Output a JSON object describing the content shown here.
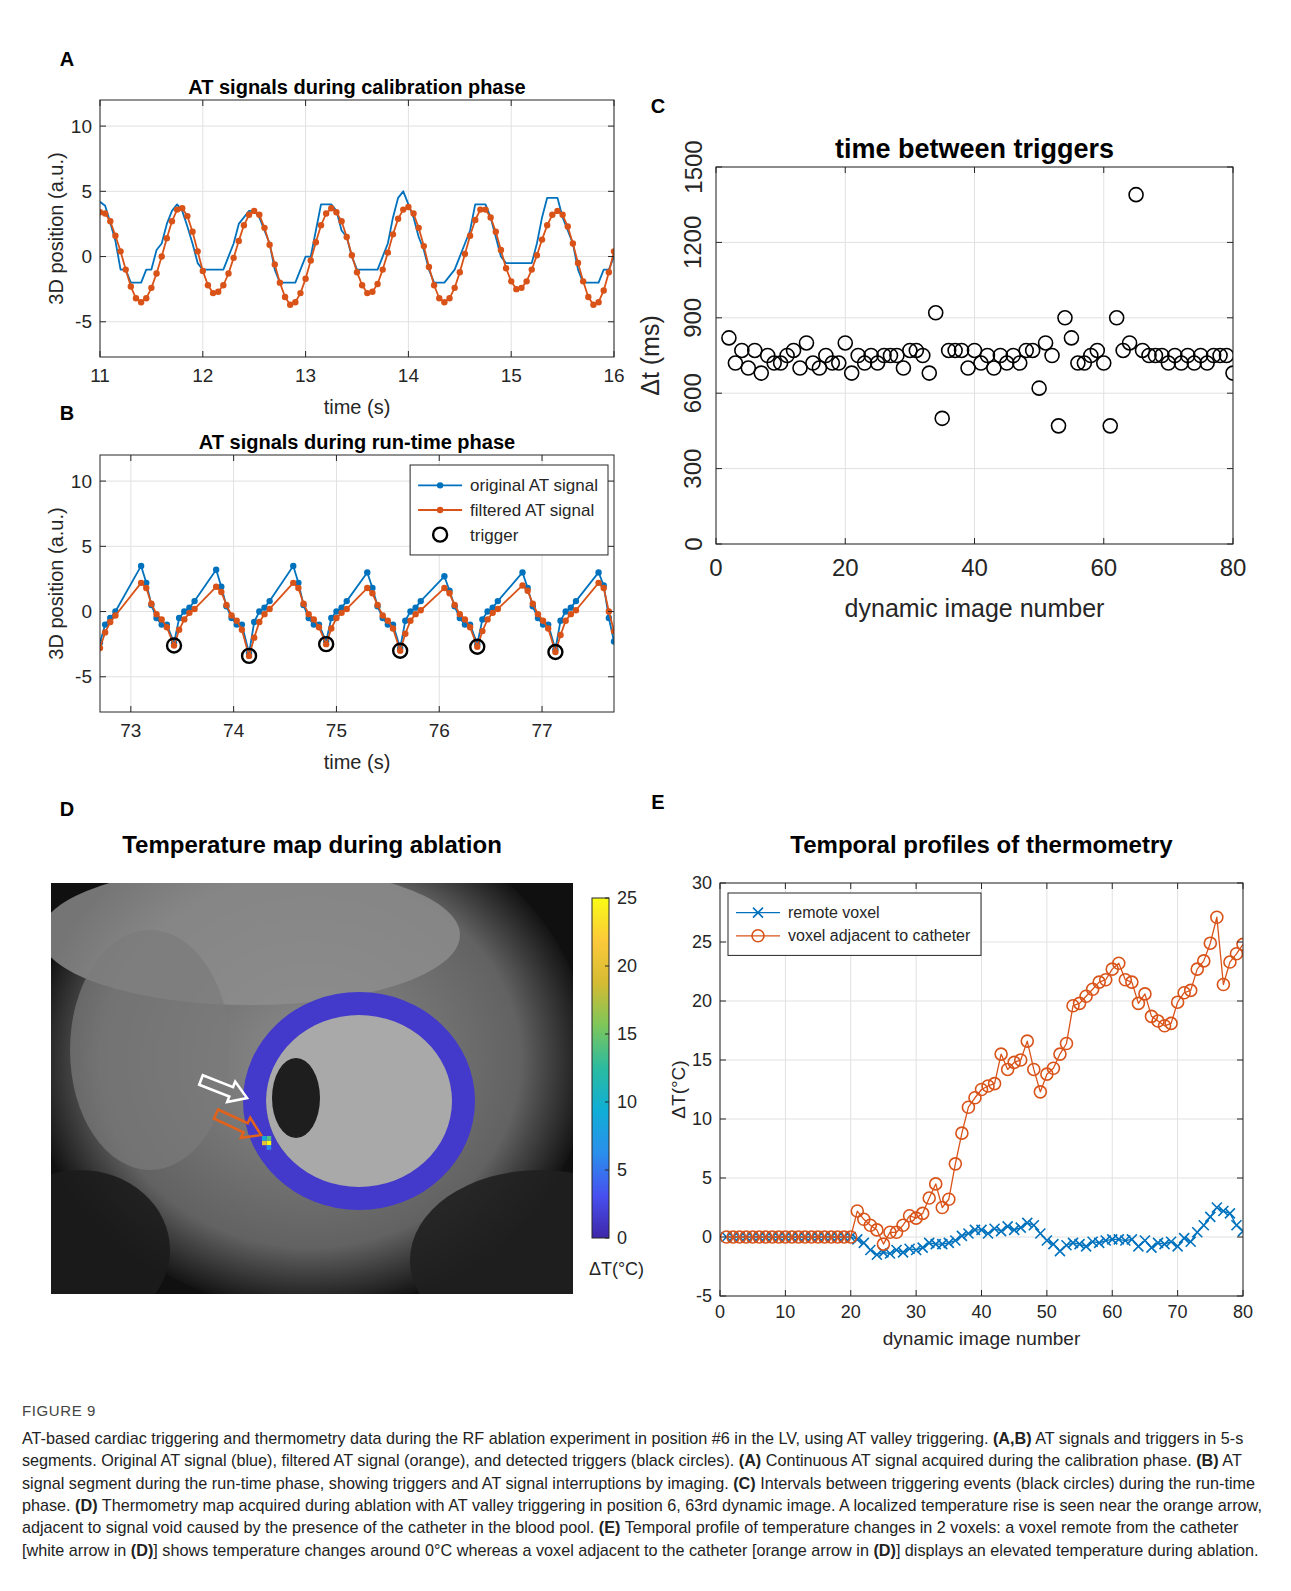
{
  "caption": {
    "label": "FIGURE 9",
    "text": "AT-based cardiac triggering and thermometry data during the RF ablation experiment in position #6 in the LV, using AT valley triggering. (A,B) AT signals and triggers in 5-s segments. Original AT signal (blue), filtered AT signal (orange), and detected triggers (black circles). (A) Continuous AT signal acquired during the calibration phase. (B) AT signal segment during the run-time phase, showing triggers and AT signal interruptions by imaging. (C) Intervals between triggering events (black circles) during the run-time phase. (D) Thermometry map acquired during ablation with AT valley triggering in position 6, 63rd dynamic image. A localized temperature rise is seen near the orange arrow, adjacent to signal void caused by the presence of the catheter in the blood pool. (E) Temporal profile of temperature changes in 2 voxels: a voxel remote from the catheter [white arrow in (D)] shows temperature changes around 0°C whereas a voxel adjacent to the catheter [orange arrow in (D)] displays an elevated temperature during ablation."
  },
  "chart_data": [
    {
      "panel": "A",
      "type": "line",
      "title": "AT signals during calibration phase",
      "x_label": "time (s)",
      "y_label": "3D position (a.u.)",
      "xlim": [
        11,
        16
      ],
      "xticks": [
        11,
        12,
        13,
        14,
        15,
        16
      ],
      "ylim": [
        -7.7,
        12
      ],
      "yticks": [
        -5,
        0,
        5,
        10
      ],
      "grid": true,
      "x": [
        11,
        11.05,
        11.1,
        11.15,
        11.2,
        11.25,
        11.3,
        11.35,
        11.4,
        11.45,
        11.5,
        11.55,
        11.6,
        11.65,
        11.7,
        11.75,
        11.8,
        11.85,
        11.9,
        11.95,
        12,
        12.05,
        12.1,
        12.15,
        12.2,
        12.25,
        12.3,
        12.35,
        12.4,
        12.45,
        12.5,
        12.55,
        12.6,
        12.65,
        12.7,
        12.75,
        12.8,
        12.85,
        12.9,
        12.95,
        13,
        13.05,
        13.1,
        13.15,
        13.2,
        13.25,
        13.3,
        13.35,
        13.4,
        13.45,
        13.5,
        13.55,
        13.6,
        13.65,
        13.7,
        13.75,
        13.8,
        13.85,
        13.9,
        13.95,
        14,
        14.05,
        14.1,
        14.15,
        14.2,
        14.25,
        14.3,
        14.35,
        14.4,
        14.45,
        14.5,
        14.55,
        14.6,
        14.65,
        14.7,
        14.75,
        14.8,
        14.85,
        14.9,
        14.95,
        15,
        15.05,
        15.1,
        15.15,
        15.2,
        15.25,
        15.3,
        15.35,
        15.4,
        15.45,
        15.5,
        15.55,
        15.6,
        15.65,
        15.7,
        15.75,
        15.8,
        15.85,
        15.9,
        15.95,
        16
      ],
      "series": [
        {
          "color": "#0072bd",
          "marker": "none",
          "line_style": "solid",
          "values": [
            4.2,
            3.9,
            2.6,
            1.2,
            -1.0,
            -1.0,
            -2.0,
            -2.0,
            -2.0,
            -1.0,
            -1.0,
            0.5,
            1.0,
            2.5,
            3.5,
            4.0,
            3.5,
            2.3,
            1.0,
            -0.5,
            -1.0,
            -1.0,
            -1.0,
            -1.0,
            -1.0,
            0.0,
            1.0,
            2.5,
            3.0,
            3.5,
            3.5,
            3.0,
            2.0,
            1.0,
            -1.0,
            -2.0,
            -2.0,
            -2.0,
            -2.0,
            -1.0,
            0.0,
            0.0,
            2.0,
            4.0,
            4.0,
            4.0,
            3.5,
            2.0,
            1.5,
            0.0,
            -1.0,
            -1.0,
            -1.0,
            -1.0,
            -1.0,
            0.0,
            1.0,
            3.0,
            4.5,
            5.0,
            4.0,
            3.0,
            1.5,
            0.5,
            -1.0,
            -2.0,
            -2.0,
            -2.0,
            -1.5,
            -1.0,
            0.0,
            1.0,
            2.0,
            4.0,
            4.0,
            4.0,
            3.0,
            1.5,
            0.0,
            -0.5,
            -0.5,
            -0.5,
            -0.5,
            -0.5,
            -0.5,
            1.0,
            3.0,
            4.5,
            4.5,
            4.5,
            3.0,
            2.0,
            1.0,
            -1.0,
            -2.0,
            -2.0,
            -2.0,
            -2.0,
            -1.0,
            -1.0,
            0.0
          ]
        },
        {
          "color": "#d95319",
          "marker": "dot",
          "line_style": "solid",
          "values": [
            3.4,
            3.3,
            2.7,
            1.6,
            0.4,
            -1.0,
            -2.3,
            -3.2,
            -3.5,
            -3.2,
            -2.4,
            -1.3,
            0.0,
            1.4,
            2.7,
            3.6,
            3.7,
            3.1,
            1.9,
            0.4,
            -1.1,
            -2.2,
            -2.8,
            -2.7,
            -2.2,
            -1.3,
            -0.1,
            1.2,
            2.4,
            3.2,
            3.5,
            3.2,
            2.2,
            0.9,
            -0.6,
            -2.0,
            -3.1,
            -3.7,
            -3.5,
            -2.8,
            -1.7,
            -0.3,
            1.1,
            2.4,
            3.3,
            3.7,
            3.4,
            2.7,
            1.5,
            0.1,
            -1.2,
            -2.2,
            -2.8,
            -2.7,
            -2.1,
            -1.0,
            0.3,
            1.7,
            2.9,
            3.6,
            3.8,
            3.3,
            2.2,
            0.8,
            -0.8,
            -2.2,
            -3.2,
            -3.5,
            -3.2,
            -2.4,
            -1.2,
            0.2,
            1.6,
            2.8,
            3.6,
            3.6,
            3.0,
            1.9,
            0.5,
            -0.9,
            -1.9,
            -2.5,
            -2.4,
            -1.9,
            -1.0,
            0.1,
            1.3,
            2.4,
            3.2,
            3.5,
            3.2,
            2.3,
            1.0,
            -0.5,
            -1.9,
            -3.1,
            -3.7,
            -3.5,
            -2.6,
            -1.2,
            0.4
          ]
        }
      ]
    },
    {
      "panel": "B",
      "type": "line",
      "title": "AT signals during run-time phase",
      "x_label": "time (s)",
      "y_label": "3D position (a.u.)",
      "xlim": [
        72.7,
        77.7
      ],
      "xticks": [
        73,
        74,
        75,
        76,
        77
      ],
      "ylim": [
        -7.7,
        12
      ],
      "yticks": [
        -5,
        0,
        5,
        10
      ],
      "grid": true,
      "legend": "upper right",
      "x": [
        72.7,
        72.75,
        72.8,
        72.85,
        73.1,
        73.15,
        73.2,
        73.25,
        73.3,
        73.35,
        73.42,
        73.47,
        73.52,
        73.57,
        73.62,
        73.83,
        73.88,
        73.93,
        73.98,
        74.03,
        74.08,
        74.15,
        74.2,
        74.25,
        74.3,
        74.35,
        74.58,
        74.63,
        74.68,
        74.73,
        74.78,
        74.83,
        74.9,
        74.95,
        75,
        75.05,
        75.1,
        75.3,
        75.35,
        75.4,
        75.45,
        75.5,
        75.55,
        75.62,
        75.67,
        75.72,
        75.77,
        75.82,
        76.05,
        76.1,
        76.15,
        76.2,
        76.25,
        76.3,
        76.37,
        76.42,
        76.47,
        76.52,
        76.57,
        76.81,
        76.86,
        76.91,
        76.96,
        77.01,
        77.06,
        77.13,
        77.18,
        77.23,
        77.28,
        77.33,
        77.55,
        77.6,
        77.65,
        77.7
      ],
      "series": [
        {
          "name": "original AT signal",
          "color": "#0072bd",
          "marker": "dot",
          "line_style": "solid",
          "values": [
            -2.4,
            -1.0,
            -0.5,
            0.0,
            3.5,
            2.2,
            0.5,
            -0.5,
            -1.0,
            -1.0,
            -2.4,
            -0.5,
            0.0,
            0.3,
            0.8,
            3.2,
            1.9,
            0.4,
            -0.5,
            -1.0,
            -1.0,
            -3.2,
            -0.8,
            0.0,
            0.3,
            0.8,
            3.5,
            2.2,
            0.5,
            -0.5,
            -1.0,
            -1.0,
            -2.3,
            -0.5,
            0.0,
            0.3,
            0.8,
            3.0,
            1.8,
            0.4,
            -0.5,
            -1.0,
            -1.0,
            -2.8,
            -0.7,
            0.0,
            0.3,
            0.8,
            2.7,
            1.6,
            0.4,
            -0.5,
            -1.0,
            -1.0,
            -2.5,
            -0.6,
            0.0,
            0.3,
            0.8,
            3.0,
            1.8,
            0.4,
            -0.5,
            -1.0,
            -1.0,
            -2.9,
            -0.7,
            0.0,
            0.3,
            0.8,
            3.0,
            2.0,
            -0.5,
            -2.3
          ]
        },
        {
          "name": "filtered AT signal",
          "color": "#d95319",
          "marker": "dot",
          "line_style": "solid",
          "values": [
            -2.8,
            -1.6,
            -0.8,
            -0.3,
            2.2,
            1.8,
            0.6,
            -0.2,
            -0.6,
            -1.2,
            -2.6,
            -1.4,
            -0.6,
            -0.1,
            0.2,
            1.9,
            1.5,
            0.5,
            -0.3,
            -0.7,
            -1.4,
            -3.4,
            -2.0,
            -0.8,
            -0.2,
            0.2,
            2.2,
            1.8,
            0.6,
            -0.2,
            -0.6,
            -1.2,
            -2.5,
            -1.3,
            -0.5,
            -0.1,
            0.2,
            1.8,
            1.4,
            0.5,
            -0.3,
            -0.7,
            -1.3,
            -3.0,
            -1.7,
            -0.7,
            -0.2,
            0.1,
            1.8,
            1.4,
            0.5,
            -0.2,
            -0.6,
            -1.2,
            -2.7,
            -1.5,
            -0.6,
            -0.1,
            0.2,
            2.0,
            1.6,
            0.6,
            -0.2,
            -0.7,
            -1.3,
            -3.1,
            -1.8,
            -0.7,
            -0.2,
            0.1,
            2.2,
            1.8,
            0.0,
            -1.5
          ]
        },
        {
          "name": "trigger",
          "color": "#000000",
          "marker": "circle",
          "line_style": "none",
          "x": [
            73.42,
            74.15,
            74.9,
            75.62,
            76.37,
            77.13
          ],
          "values": [
            -2.6,
            -3.4,
            -2.5,
            -3.0,
            -2.7,
            -3.1
          ]
        }
      ]
    },
    {
      "panel": "C",
      "type": "scatter",
      "title": "time between triggers",
      "x_label": "dynamic image number",
      "y_label": "Δt (ms)",
      "xlim": [
        0,
        80
      ],
      "xticks": [
        0,
        20,
        40,
        60,
        80
      ],
      "ylim": [
        0,
        1500
      ],
      "yticks": [
        0,
        300,
        600,
        900,
        1200,
        1500
      ],
      "grid": true,
      "color": "#000000",
      "marker": "circle",
      "x": [
        2,
        3,
        4,
        5,
        6,
        7,
        8,
        9,
        10,
        11,
        12,
        13,
        14,
        15,
        16,
        17,
        18,
        19,
        20,
        21,
        22,
        23,
        24,
        25,
        26,
        27,
        28,
        29,
        30,
        31,
        32,
        33,
        34,
        35,
        36,
        37,
        38,
        39,
        40,
        41,
        42,
        43,
        44,
        45,
        46,
        47,
        48,
        49,
        50,
        51,
        52,
        53,
        54,
        55,
        56,
        57,
        58,
        59,
        60,
        61,
        62,
        63,
        64,
        65,
        66,
        67,
        68,
        69,
        70,
        71,
        72,
        73,
        74,
        75,
        76,
        77,
        78,
        79,
        80
      ],
      "values": [
        820,
        720,
        770,
        700,
        770,
        680,
        750,
        720,
        720,
        750,
        770,
        700,
        800,
        720,
        700,
        750,
        720,
        720,
        800,
        680,
        750,
        720,
        750,
        720,
        750,
        750,
        750,
        700,
        770,
        770,
        750,
        680,
        920,
        500,
        770,
        770,
        770,
        700,
        770,
        720,
        750,
        700,
        750,
        720,
        750,
        720,
        770,
        770,
        620,
        800,
        750,
        470,
        900,
        820,
        720,
        720,
        750,
        770,
        720,
        470,
        900,
        770,
        800,
        1390,
        770,
        750,
        750,
        750,
        720,
        750,
        720,
        750,
        720,
        750,
        720,
        750,
        750,
        750,
        680
      ]
    },
    {
      "panel": "D",
      "type": "image",
      "title": "Temperature map during ablation",
      "colorbar": {
        "clim": [
          0,
          25
        ],
        "ticks": [
          0,
          5,
          10,
          15,
          20,
          25
        ],
        "label": "ΔT(°C)"
      },
      "ring_value": 1.5,
      "hotspot_values": [
        25,
        20,
        14,
        9,
        6
      ]
    },
    {
      "panel": "E",
      "type": "line",
      "title": "Temporal profiles of thermometry",
      "x_label": "dynamic image number",
      "y_label": "ΔT(°C)",
      "xlim": [
        0,
        80
      ],
      "xticks": [
        0,
        10,
        20,
        30,
        40,
        50,
        60,
        70,
        80
      ],
      "ylim": [
        -5,
        30
      ],
      "yticks": [
        -5,
        0,
        5,
        10,
        15,
        20,
        25,
        30
      ],
      "grid": true,
      "legend": "upper left",
      "x": [
        1,
        2,
        3,
        4,
        5,
        6,
        7,
        8,
        9,
        10,
        11,
        12,
        13,
        14,
        15,
        16,
        17,
        18,
        19,
        20,
        21,
        22,
        23,
        24,
        25,
        26,
        27,
        28,
        29,
        30,
        31,
        32,
        33,
        34,
        35,
        36,
        37,
        38,
        39,
        40,
        41,
        42,
        43,
        44,
        45,
        46,
        47,
        48,
        49,
        50,
        51,
        52,
        53,
        54,
        55,
        56,
        57,
        58,
        59,
        60,
        61,
        62,
        63,
        64,
        65,
        66,
        67,
        68,
        69,
        70,
        71,
        72,
        73,
        74,
        75,
        76,
        77,
        78,
        79,
        80
      ],
      "series": [
        {
          "name": "remote voxel",
          "color": "#0072bd",
          "marker": "x",
          "line_style": "solid",
          "values": [
            0,
            0,
            0,
            0,
            0,
            0,
            0,
            0,
            0,
            0,
            0,
            0,
            0,
            0,
            0,
            0,
            0,
            0,
            0,
            0,
            -0.2,
            -0.5,
            -1.1,
            -1.5,
            -1.3,
            -1.4,
            -1.1,
            -1.3,
            -1.0,
            -1.1,
            -0.9,
            -0.5,
            -0.6,
            -0.6,
            -0.5,
            -0.3,
            0.1,
            0.3,
            0.6,
            0.6,
            0.3,
            0.7,
            0.5,
            0.9,
            0.6,
            0.8,
            1.2,
            1.0,
            0.3,
            -0.3,
            -0.6,
            -1.2,
            -0.7,
            -0.5,
            -0.6,
            -0.8,
            -0.4,
            -0.5,
            -0.3,
            -0.2,
            -0.2,
            -0.3,
            -0.2,
            -0.8,
            -0.3,
            -0.9,
            -0.5,
            -0.6,
            -0.4,
            -0.8,
            -0.1,
            -0.4,
            0.4,
            1.0,
            1.7,
            2.5,
            2.2,
            2.0,
            1.0,
            0.5
          ]
        },
        {
          "name": "voxel adjacent to catheter",
          "color": "#d95319",
          "marker": "circle",
          "line_style": "solid",
          "values": [
            0,
            0,
            0,
            0,
            0,
            0,
            0,
            0,
            0,
            0,
            0,
            0,
            0,
            0,
            0,
            0,
            0,
            0,
            0,
            0,
            2.2,
            1.5,
            1.0,
            0.6,
            -0.6,
            0.4,
            0.4,
            1.0,
            1.8,
            1.6,
            2.0,
            3.3,
            4.5,
            2.5,
            3.2,
            6.2,
            8.8,
            11.0,
            11.8,
            12.5,
            12.8,
            13.0,
            15.5,
            14.2,
            14.8,
            15.0,
            16.6,
            14.2,
            12.3,
            13.8,
            14.3,
            15.5,
            16.4,
            19.6,
            19.8,
            20.4,
            21.0,
            21.6,
            21.8,
            22.7,
            23.2,
            21.8,
            21.6,
            19.8,
            20.6,
            18.7,
            18.3,
            17.9,
            18.1,
            19.9,
            20.7,
            20.9,
            22.7,
            23.4,
            24.9,
            27.1,
            21.4,
            23.3,
            24.0,
            24.8
          ]
        }
      ]
    }
  ]
}
